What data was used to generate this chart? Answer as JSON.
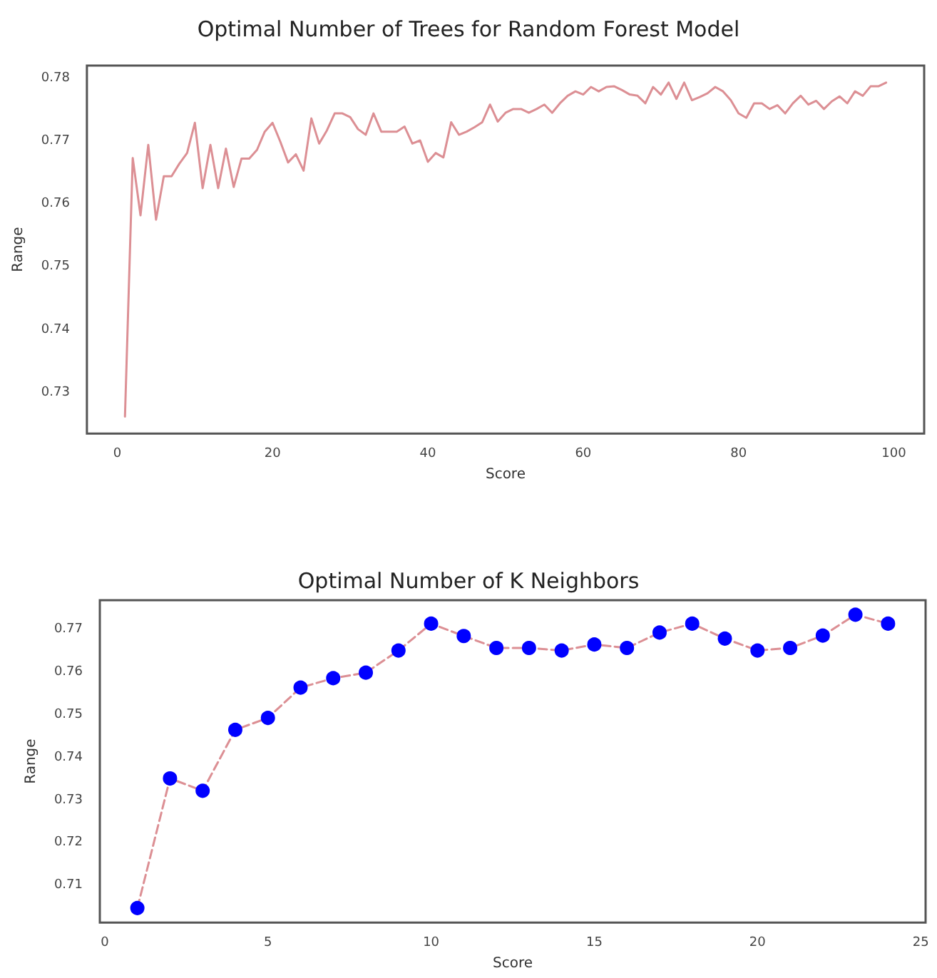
{
  "chart_data": [
    {
      "type": "line",
      "title": "Optimal Number of Trees for Random Forest Model",
      "xlabel": "Score",
      "ylabel": "Range",
      "x": [
        1,
        2,
        3,
        4,
        5,
        6,
        7,
        8,
        9,
        10,
        11,
        12,
        13,
        14,
        15,
        16,
        17,
        18,
        19,
        20,
        21,
        22,
        23,
        24,
        25,
        26,
        27,
        28,
        29,
        30,
        31,
        32,
        33,
        34,
        35,
        36,
        37,
        38,
        39,
        40,
        41,
        42,
        43,
        44,
        45,
        46,
        47,
        48,
        49,
        50,
        51,
        52,
        53,
        54,
        55,
        56,
        57,
        58,
        59,
        60,
        61,
        62,
        63,
        64,
        65,
        66,
        67,
        68,
        69,
        70,
        71,
        72,
        73,
        74,
        75,
        76,
        77,
        78,
        79,
        80,
        81,
        82,
        83,
        84,
        85,
        86,
        87,
        88,
        89,
        90,
        91,
        92,
        93,
        94,
        95,
        96,
        97,
        98,
        99
      ],
      "series": [
        {
          "color": "#dc8f94",
          "values": [
            0.7262,
            0.7673,
            0.7582,
            0.7694,
            0.7575,
            0.7644,
            0.7644,
            0.7664,
            0.7681,
            0.7729,
            0.7625,
            0.7694,
            0.7625,
            0.7688,
            0.7627,
            0.7672,
            0.7672,
            0.7686,
            0.7715,
            0.7729,
            0.7699,
            0.7666,
            0.7679,
            0.7653,
            0.7736,
            0.7696,
            0.7717,
            0.7744,
            0.7744,
            0.7738,
            0.7719,
            0.771,
            0.7744,
            0.7715,
            0.7715,
            0.7715,
            0.7723,
            0.7696,
            0.7701,
            0.7667,
            0.7681,
            0.7674,
            0.773,
            0.771,
            0.7715,
            0.7722,
            0.773,
            0.7758,
            0.7731,
            0.7745,
            0.7751,
            0.7751,
            0.7745,
            0.7751,
            0.7758,
            0.7745,
            0.776,
            0.7772,
            0.7779,
            0.7774,
            0.7786,
            0.7779,
            0.7786,
            0.7787,
            0.7781,
            0.7774,
            0.7772,
            0.776,
            0.7786,
            0.7774,
            0.7793,
            0.7767,
            0.7793,
            0.7765,
            0.777,
            0.7776,
            0.7786,
            0.7779,
            0.7765,
            0.7744,
            0.7737,
            0.776,
            0.776,
            0.7751,
            0.7757,
            0.7744,
            0.776,
            0.7772,
            0.7758,
            0.7764,
            0.7751,
            0.7763,
            0.7771,
            0.776,
            0.7779,
            0.7772,
            0.7787,
            0.7787,
            0.7793
          ]
        }
      ],
      "xlim": [
        -3.9,
        103.9
      ],
      "ylim": [
        0.7235,
        0.782
      ],
      "xticks": [
        0,
        20,
        40,
        60,
        80,
        100
      ],
      "yticks": [
        0.73,
        0.74,
        0.75,
        0.76,
        0.77,
        0.78
      ],
      "marker": "none",
      "line_style": "solid"
    },
    {
      "type": "line",
      "title": "Optimal Number of K Neighbors",
      "xlabel": "Score",
      "ylabel": "Range",
      "x": [
        1,
        2,
        3,
        4,
        5,
        6,
        7,
        8,
        9,
        10,
        11,
        12,
        13,
        14,
        15,
        16,
        17,
        18,
        19,
        20,
        21,
        22,
        23,
        24
      ],
      "series": [
        {
          "color": "#dc8f94",
          "colors": [
            "#0000ff",
            "#0000ff",
            "#0000ff",
            "#0000ff",
            "#0000ff",
            "#0000ff",
            "#0000ff",
            "#0000ff",
            "#0000ff",
            "#0000ff",
            "#0000ff",
            "#0000ff",
            "#0000ff",
            "#0000ff",
            "#0000ff",
            "#0000ff",
            "#0000ff",
            "#0000ff",
            "#0000ff",
            "#0000ff",
            "#0000ff",
            "#0000ff",
            "#0000ff",
            "#0000ff"
          ],
          "values": [
            0.7047,
            0.7351,
            0.7322,
            0.7465,
            0.7493,
            0.7564,
            0.7586,
            0.7599,
            0.7651,
            0.7714,
            0.7685,
            0.7657,
            0.7657,
            0.7651,
            0.7665,
            0.7657,
            0.7693,
            0.7714,
            0.7679,
            0.7651,
            0.7657,
            0.7686,
            0.7735,
            0.7714
          ]
        }
      ],
      "xlim": [
        -0.15,
        25.15
      ],
      "ylim": [
        0.7013,
        0.7769
      ],
      "xticks": [
        0,
        5,
        10,
        15,
        20,
        25
      ],
      "yticks": [
        0.71,
        0.72,
        0.73,
        0.74,
        0.75,
        0.76,
        0.77
      ],
      "marker": "circle",
      "line_style": "dashed"
    }
  ]
}
